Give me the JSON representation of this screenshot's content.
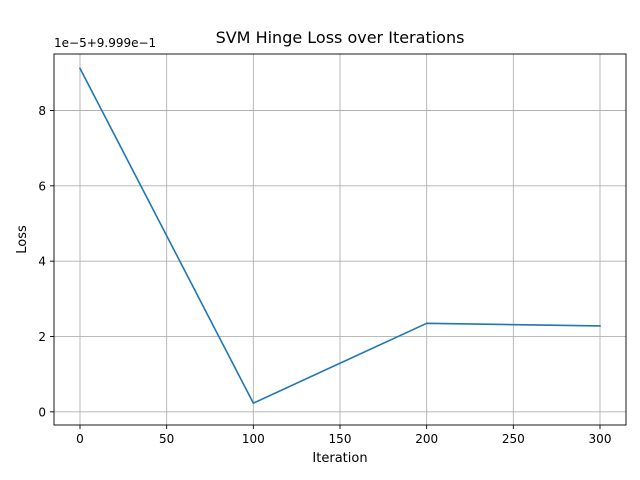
{
  "chart_data": {
    "type": "line",
    "title": "SVM Hinge Loss over Iterations",
    "xlabel": "Iteration",
    "ylabel": "Loss",
    "offset_text": "1e−5+9.999e−1",
    "x_ticks": [
      0,
      50,
      100,
      150,
      200,
      250,
      300
    ],
    "y_ticks": [
      0,
      2,
      4,
      6,
      8
    ],
    "xlim": [
      -15,
      315
    ],
    "ylim": [
      -0.35,
      9.5
    ],
    "grid": true,
    "series": [
      {
        "color": "#1f77b4",
        "x": [
          0,
          100,
          200,
          300
        ],
        "y": [
          9.12,
          0.23,
          2.35,
          2.28
        ]
      }
    ]
  }
}
